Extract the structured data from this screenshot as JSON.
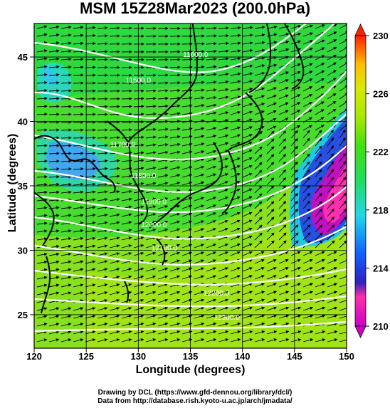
{
  "title": "MSM 15Z28Mar2023 (200.0hPa)",
  "xlabel": "Longitude (degrees)",
  "ylabel": "Latitude  (degrees)",
  "credits": [
    "Drawing by DCL (https://www.gfd-dennou.org/library/dcl/)",
    "Data from http://database.rish.kyoto-u.ac.jp/arch/jmadata/"
  ],
  "chart_data": {
    "type": "heatmap",
    "x_range": [
      120,
      150
    ],
    "y_range": [
      22.4,
      47.6
    ],
    "x_ticks": [
      "120",
      "125",
      "130",
      "135",
      "140",
      "145",
      "150"
    ],
    "y_ticks": [
      "25",
      "30",
      "35",
      "40",
      "45"
    ],
    "colorbar": {
      "min": 210,
      "max": 230,
      "ticks": [
        "210",
        "214",
        "218",
        "222",
        "226",
        "230"
      ],
      "colors": [
        "#cc00cc",
        "#ff2fa8",
        "#2040e0",
        "#1070ff",
        "#20d8e8",
        "#20dd90",
        "#30dd30",
        "#60e010",
        "#a8e800",
        "#d8e800",
        "#ffd000",
        "#ff8000",
        "#ff2000"
      ]
    },
    "contour_labels": [
      {
        "label": "11600.0",
        "lon": 135.5,
        "lat": 45.0
      },
      {
        "label": "11700.0",
        "lon": 128.5,
        "lat": 38.0
      },
      {
        "label": "11800.0",
        "lon": 130.5,
        "lat": 35.6
      },
      {
        "label": "11900.0",
        "lon": 131.5,
        "lat": 33.6
      },
      {
        "label": "12000.0",
        "lon": 131.5,
        "lat": 31.8
      },
      {
        "label": "12100.0",
        "lon": 132.5,
        "lat": 30.0
      },
      {
        "label": "12200.0",
        "lon": 137.5,
        "lat": 26.5
      },
      {
        "label": "12300.0",
        "lon": 138.5,
        "lat": 24.6
      },
      {
        "label": "11500.0",
        "lon": 130.0,
        "lat": 43.0
      }
    ]
  }
}
